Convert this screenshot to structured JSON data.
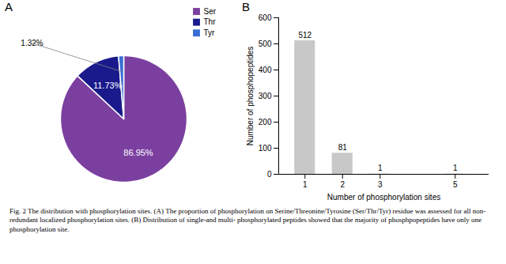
{
  "chart_data": [
    {
      "type": "pie",
      "title": "A",
      "categories": [
        "Ser",
        "Thr",
        "Tyr"
      ],
      "values": [
        86.95,
        11.73,
        1.32
      ],
      "value_labels": [
        "86.95%",
        "11.73%",
        "1.32%"
      ],
      "colors": [
        "#7B3FA0",
        "#1a1a8c",
        "#3a6ed4"
      ],
      "data_labels": true,
      "legend": "upper right"
    },
    {
      "type": "bar",
      "title": "B",
      "x": [
        1,
        2,
        3,
        5
      ],
      "values": [
        512,
        81,
        1,
        1
      ],
      "color": "#c8c8c8",
      "data_labels": true,
      "xlabel": "Number of phosphorylation sites",
      "ylabel": "Number of phosphopeptides",
      "xlim": [
        0.3,
        5.9
      ],
      "xticks": [
        1,
        2,
        3,
        5
      ],
      "ylim": [
        0,
        600
      ],
      "yticks": [
        0,
        100,
        200,
        300,
        400,
        500,
        600
      ],
      "grid": false
    }
  ],
  "caption": "Fig. 2  The distribution with phosphorylation sites. (A) The proportion of phosphorylation on Serine/Threonine/Tyrosine (Ser/Thr/Tyr) residue was assessed for all non-redundant localized phosphorylation sites. (B) Distribution of single-and multi- phosphorylated peptides showed that the majority of phosphpopeptides have only one phosphorylation site."
}
